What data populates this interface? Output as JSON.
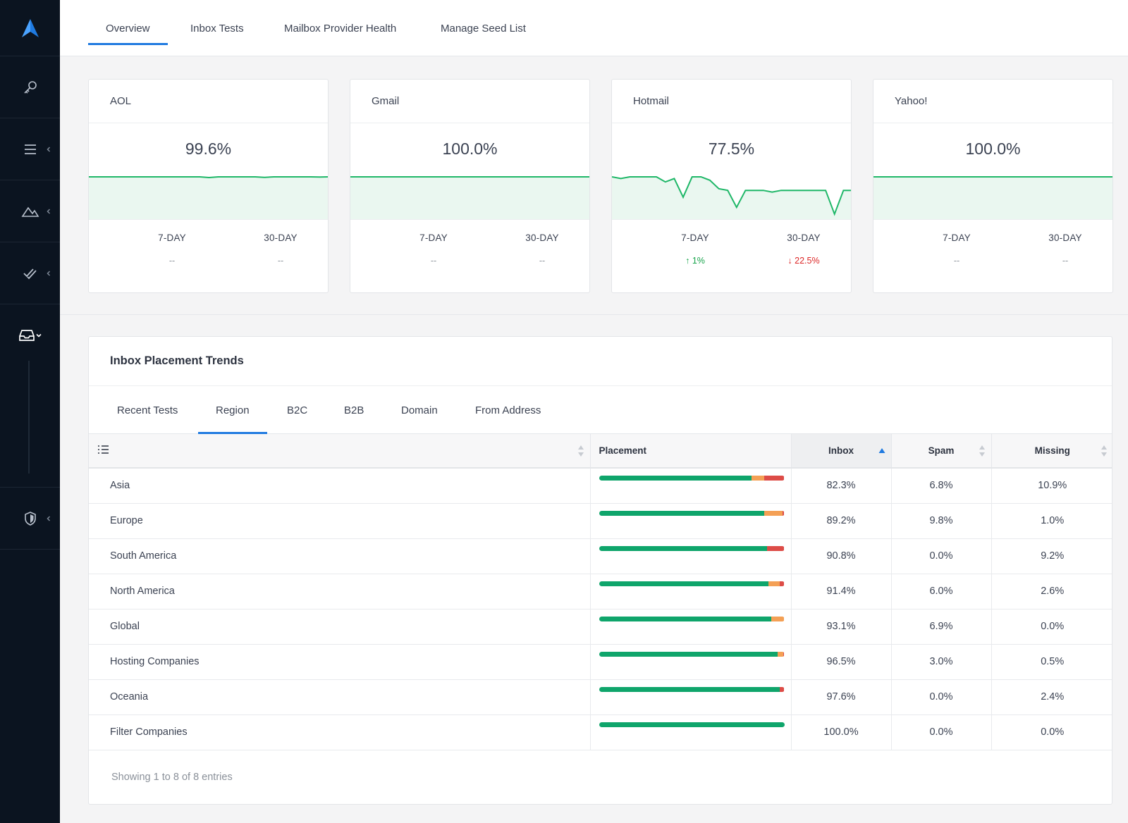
{
  "nav": {
    "tabs": [
      {
        "label": "Overview",
        "active": true
      },
      {
        "label": "Inbox Tests",
        "active": false
      },
      {
        "label": "Mailbox Provider Health",
        "active": false
      },
      {
        "label": "Manage Seed List",
        "active": false
      }
    ]
  },
  "sidebar": {
    "items": [
      {
        "icon": "key-icon"
      },
      {
        "icon": "menu-icon"
      },
      {
        "icon": "mountain-icon"
      },
      {
        "icon": "double-check-icon"
      },
      {
        "icon": "inbox-tray-icon",
        "expanded": true
      },
      {
        "icon": "shield-icon"
      }
    ]
  },
  "providers": [
    {
      "name": "AOL",
      "value": "99.6%",
      "seven_day_label": "7-DAY",
      "seven_day_value": "--",
      "thirty_day_label": "30-DAY",
      "thirty_day_value": "--",
      "trend": [
        100,
        100,
        100,
        100,
        100,
        100,
        100,
        100,
        100,
        100,
        100,
        100,
        100,
        99.6,
        100,
        100,
        100,
        100,
        100,
        99.7,
        100,
        100,
        100,
        100,
        100,
        99.9,
        100
      ]
    },
    {
      "name": "Gmail",
      "value": "100.0%",
      "seven_day_label": "7-DAY",
      "seven_day_value": "--",
      "thirty_day_label": "30-DAY",
      "thirty_day_value": "--",
      "trend": [
        100,
        100,
        100,
        100,
        100,
        100,
        100,
        100,
        100,
        100,
        100,
        100,
        100,
        100,
        100,
        100,
        100,
        100,
        100,
        100,
        100,
        100,
        100,
        100,
        100,
        100,
        100
      ]
    },
    {
      "name": "Hotmail",
      "value": "77.5%",
      "seven_day_label": "7-DAY",
      "seven_day_value": "1%",
      "seven_day_dir": "up",
      "thirty_day_label": "30-DAY",
      "thirty_day_value": "22.5%",
      "thirty_day_dir": "down",
      "trend": [
        100,
        99,
        100,
        100,
        100,
        100,
        97,
        99,
        88,
        100,
        100,
        98,
        93,
        92,
        82,
        92,
        92,
        92,
        91,
        92,
        92,
        92,
        92,
        92,
        92,
        78,
        92,
        92
      ]
    },
    {
      "name": "Yahoo!",
      "value": "100.0%",
      "seven_day_label": "7-DAY",
      "seven_day_value": "--",
      "thirty_day_label": "30-DAY",
      "thirty_day_value": "--",
      "trend": [
        100,
        100,
        100,
        100,
        100,
        100,
        100,
        100,
        100,
        100,
        100,
        100,
        100,
        100,
        100,
        100,
        100,
        100,
        100,
        100,
        100,
        100,
        100,
        100,
        100,
        100,
        100
      ]
    }
  ],
  "colors": {
    "accent": "#1f7ae0",
    "inbox": "#0fa56b",
    "spam": "#f4a055",
    "missing": "#dd4c47",
    "spark_line": "#1fb768",
    "spark_fill": "#eaf7f0"
  },
  "trends": {
    "title": "Inbox Placement Trends",
    "tabs": [
      {
        "label": "Recent Tests",
        "active": false
      },
      {
        "label": "Region",
        "active": true
      },
      {
        "label": "B2C",
        "active": false
      },
      {
        "label": "B2B",
        "active": false
      },
      {
        "label": "Domain",
        "active": false
      },
      {
        "label": "From Address",
        "active": false
      }
    ],
    "columns": {
      "placement": "Placement",
      "inbox": "Inbox",
      "spam": "Spam",
      "missing": "Missing"
    },
    "rows": [
      {
        "name": "Asia",
        "inbox": "82.3%",
        "spam": "6.8%",
        "missing": "10.9%",
        "inbox_pct": 82.3,
        "spam_pct": 6.8,
        "missing_pct": 10.9
      },
      {
        "name": "Europe",
        "inbox": "89.2%",
        "spam": "9.8%",
        "missing": "1.0%",
        "inbox_pct": 89.2,
        "spam_pct": 9.8,
        "missing_pct": 1.0
      },
      {
        "name": "South America",
        "inbox": "90.8%",
        "spam": "0.0%",
        "missing": "9.2%",
        "inbox_pct": 90.8,
        "spam_pct": 0.0,
        "missing_pct": 9.2
      },
      {
        "name": "North America",
        "inbox": "91.4%",
        "spam": "6.0%",
        "missing": "2.6%",
        "inbox_pct": 91.4,
        "spam_pct": 6.0,
        "missing_pct": 2.6
      },
      {
        "name": "Global",
        "inbox": "93.1%",
        "spam": "6.9%",
        "missing": "0.0%",
        "inbox_pct": 93.1,
        "spam_pct": 6.9,
        "missing_pct": 0.0
      },
      {
        "name": "Hosting Companies",
        "inbox": "96.5%",
        "spam": "3.0%",
        "missing": "0.5%",
        "inbox_pct": 96.5,
        "spam_pct": 3.0,
        "missing_pct": 0.5
      },
      {
        "name": "Oceania",
        "inbox": "97.6%",
        "spam": "0.0%",
        "missing": "2.4%",
        "inbox_pct": 97.6,
        "spam_pct": 0.0,
        "missing_pct": 2.4
      },
      {
        "name": "Filter Companies",
        "inbox": "100.0%",
        "spam": "0.0%",
        "missing": "0.0%",
        "inbox_pct": 100.0,
        "spam_pct": 0.0,
        "missing_pct": 0.0
      }
    ],
    "footer": "Showing 1 to 8 of 8 entries"
  }
}
